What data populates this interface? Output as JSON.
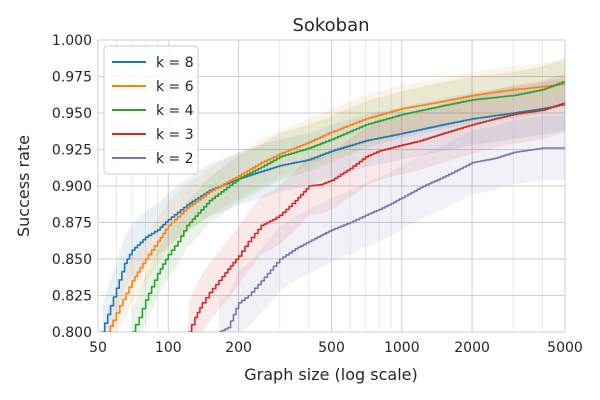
{
  "chart_data": {
    "type": "line",
    "title": "Sokoban",
    "xlabel": "Graph size (log scale)",
    "ylabel": "Success rate",
    "xscale": "log",
    "xlim": [
      50,
      5000
    ],
    "ylim": [
      0.8,
      1.0
    ],
    "xticks": [
      50,
      100,
      200,
      500,
      1000,
      2000,
      5000
    ],
    "xtick_labels": [
      "50",
      "100",
      "200",
      "500",
      "1000",
      "2000",
      "5000"
    ],
    "yticks": [
      0.8,
      0.825,
      0.85,
      0.875,
      0.9,
      0.925,
      0.95,
      0.975,
      1.0
    ],
    "ytick_labels": [
      "0.800",
      "0.825",
      "0.850",
      "0.875",
      "0.900",
      "0.925",
      "0.950",
      "0.975",
      "1.000"
    ],
    "grid": true,
    "legend_position": "top-left",
    "series": [
      {
        "name": "k = 8",
        "color": "#1f77b4",
        "band": 0.018,
        "x": [
          52,
          55,
          60,
          65,
          70,
          80,
          90,
          100,
          120,
          150,
          200,
          250,
          300,
          400,
          500,
          700,
          1000,
          1500,
          2000,
          3000,
          4000,
          5000
        ],
        "y": [
          0.8,
          0.812,
          0.83,
          0.847,
          0.856,
          0.865,
          0.87,
          0.877,
          0.887,
          0.897,
          0.905,
          0.91,
          0.914,
          0.918,
          0.924,
          0.931,
          0.936,
          0.942,
          0.946,
          0.95,
          0.953,
          0.956
        ]
      },
      {
        "name": "k = 6",
        "color": "#ff7f0e",
        "band": 0.016,
        "x": [
          55,
          58,
          62,
          70,
          80,
          90,
          100,
          120,
          150,
          200,
          250,
          300,
          400,
          500,
          700,
          1000,
          1500,
          2000,
          3000,
          4000,
          5000
        ],
        "y": [
          0.8,
          0.808,
          0.818,
          0.835,
          0.85,
          0.862,
          0.873,
          0.885,
          0.896,
          0.907,
          0.916,
          0.922,
          0.93,
          0.937,
          0.946,
          0.953,
          0.958,
          0.962,
          0.966,
          0.968,
          0.97
        ]
      },
      {
        "name": "k = 4",
        "color": "#2ca02c",
        "band": 0.016,
        "x": [
          70,
          75,
          80,
          90,
          100,
          110,
          120,
          150,
          200,
          250,
          300,
          400,
          500,
          700,
          1000,
          1500,
          2000,
          3000,
          4000,
          5000
        ],
        "y": [
          0.8,
          0.81,
          0.822,
          0.84,
          0.853,
          0.862,
          0.873,
          0.89,
          0.905,
          0.913,
          0.92,
          0.926,
          0.932,
          0.942,
          0.949,
          0.955,
          0.959,
          0.962,
          0.966,
          0.972
        ]
      },
      {
        "name": "k = 3",
        "color": "#d62728",
        "band": 0.02,
        "x": [
          122,
          130,
          140,
          150,
          170,
          180,
          200,
          220,
          250,
          280,
          300,
          350,
          400,
          450,
          500,
          600,
          700,
          800,
          1000,
          1200,
          1500,
          2000,
          2500,
          3000,
          4000,
          5000
        ],
        "y": [
          0.8,
          0.81,
          0.82,
          0.827,
          0.838,
          0.843,
          0.852,
          0.862,
          0.873,
          0.877,
          0.88,
          0.89,
          0.9,
          0.901,
          0.904,
          0.912,
          0.92,
          0.924,
          0.928,
          0.931,
          0.936,
          0.942,
          0.946,
          0.949,
          0.952,
          0.957
        ]
      },
      {
        "name": "k = 2",
        "color": "#8172b2",
        "band": 0.022,
        "x": [
          165,
          180,
          190,
          200,
          220,
          250,
          300,
          350,
          400,
          500,
          600,
          700,
          800,
          900,
          1000,
          1200,
          1500,
          2000,
          2500,
          3000,
          4000,
          5000
        ],
        "y": [
          0.8,
          0.803,
          0.812,
          0.82,
          0.825,
          0.835,
          0.85,
          0.857,
          0.862,
          0.87,
          0.875,
          0.88,
          0.884,
          0.888,
          0.892,
          0.899,
          0.906,
          0.916,
          0.919,
          0.923,
          0.926,
          0.926
        ]
      }
    ]
  }
}
